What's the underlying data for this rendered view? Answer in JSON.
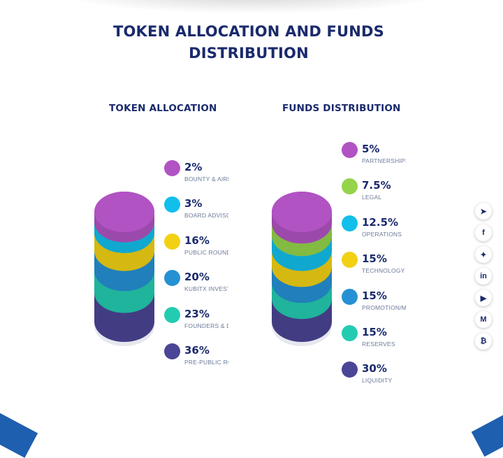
{
  "page": {
    "title_line1": "TOKEN ALLOCATION AND FUNDS",
    "title_line2": "DISTRIBUTION"
  },
  "token_allocation": {
    "title": "TOKEN ALLOCATION",
    "items": [
      {
        "pct": "2%",
        "label": "BOUNTY & AIRDROP",
        "color": "#b153c3"
      },
      {
        "pct": "3%",
        "label": "BOARD ADVISORS",
        "color": "#12bfea"
      },
      {
        "pct": "16%",
        "label": "PUBLIC ROUNDS",
        "color": "#f2d115"
      },
      {
        "pct": "20%",
        "label": "KUBITX INVESTORS",
        "color": "#2590d4"
      },
      {
        "pct": "23%",
        "label": "FOUNDERS & DEVELOPERS",
        "color": "#23ccb0"
      },
      {
        "pct": "36%",
        "label": "PRE-PUBLIC ROUND",
        "color": "#4b4595"
      }
    ]
  },
  "funds_distribution": {
    "title": "FUNDS DISTRIBUTION",
    "items": [
      {
        "pct": "5%",
        "label": "PARTNERSHIPS",
        "color": "#b153c3"
      },
      {
        "pct": "7.5%",
        "label": "LEGAL",
        "color": "#95d34b"
      },
      {
        "pct": "12.5%",
        "label": "OPERATIONS",
        "color": "#12bfea"
      },
      {
        "pct": "15%",
        "label": "TECHNOLOGY",
        "color": "#f2d115"
      },
      {
        "pct": "15%",
        "label": "PROMOTION/MARKETING",
        "color": "#2590d4"
      },
      {
        "pct": "15%",
        "label": "RESERVES",
        "color": "#23ccb0"
      },
      {
        "pct": "30%",
        "label": "LIQUIDITY",
        "color": "#4b4595"
      }
    ]
  },
  "social": [
    {
      "name": "telegram-icon",
      "glyph": "➤"
    },
    {
      "name": "facebook-icon",
      "glyph": "f"
    },
    {
      "name": "twitter-icon",
      "glyph": "✦"
    },
    {
      "name": "linkedin-icon",
      "glyph": "in"
    },
    {
      "name": "youtube-icon",
      "glyph": "▶"
    },
    {
      "name": "medium-icon",
      "glyph": "M"
    },
    {
      "name": "bitcoin-icon",
      "glyph": "₿"
    }
  ]
}
